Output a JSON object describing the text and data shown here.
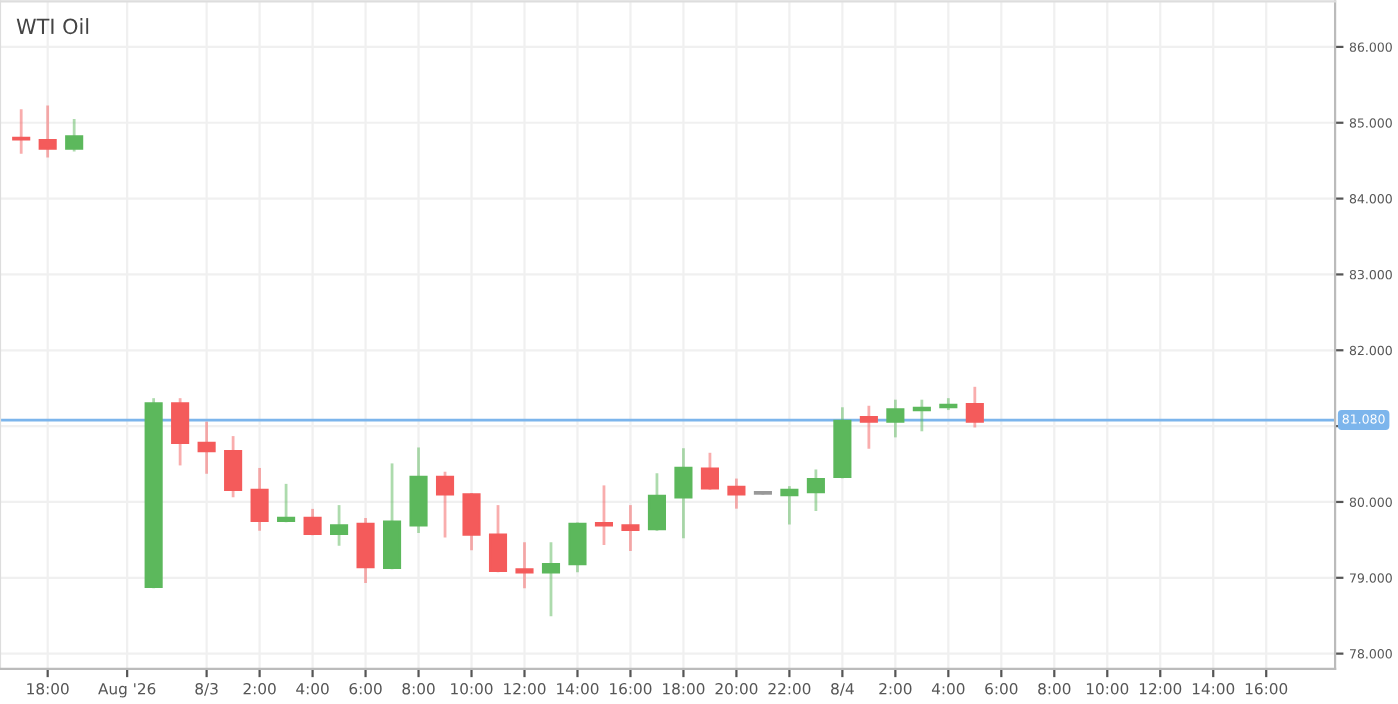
{
  "chart_data": {
    "type": "candlestick",
    "title": "WTI Oil",
    "x": [
      "2026-08-02T17:00",
      "2026-08-02T18:00",
      "2026-08-02T19:00",
      "2026-08-02T22:00",
      "2026-08-02T23:00",
      "2026-08-03T00:00",
      "2026-08-03T01:00",
      "2026-08-03T02:00",
      "2026-08-03T03:00",
      "2026-08-03T04:00",
      "2026-08-03T05:00",
      "2026-08-03T06:00",
      "2026-08-03T07:00",
      "2026-08-03T08:00",
      "2026-08-03T09:00",
      "2026-08-03T10:00",
      "2026-08-03T11:00",
      "2026-08-03T12:00",
      "2026-08-03T13:00",
      "2026-08-03T14:00",
      "2026-08-03T15:00",
      "2026-08-03T16:00",
      "2026-08-03T17:00",
      "2026-08-03T18:00",
      "2026-08-03T19:00",
      "2026-08-03T20:00",
      "2026-08-03T21:00",
      "2026-08-03T22:00",
      "2026-08-03T23:00",
      "2026-08-04T00:00",
      "2026-08-04T01:00",
      "2026-08-04T02:00",
      "2026-08-04T03:00",
      "2026-08-04T04:00",
      "2026-08-04T05:00"
    ],
    "ohlc": [
      [
        84.79,
        85.16,
        84.61,
        84.78
      ],
      [
        84.77,
        85.21,
        84.56,
        84.66
      ],
      [
        84.66,
        85.03,
        84.64,
        84.82
      ],
      [
        78.88,
        81.35,
        78.88,
        81.3
      ],
      [
        81.3,
        81.35,
        80.5,
        80.78
      ],
      [
        80.78,
        81.04,
        80.39,
        80.67
      ],
      [
        80.67,
        80.85,
        80.08,
        80.16
      ],
      [
        80.16,
        80.43,
        79.64,
        79.75
      ],
      [
        79.75,
        80.22,
        79.75,
        79.79
      ],
      [
        79.79,
        79.89,
        79.58,
        79.58
      ],
      [
        79.58,
        79.94,
        79.44,
        79.69
      ],
      [
        79.71,
        79.77,
        78.95,
        79.14
      ],
      [
        79.13,
        80.49,
        79.13,
        79.74
      ],
      [
        79.69,
        80.7,
        79.61,
        80.33
      ],
      [
        80.33,
        80.38,
        79.55,
        80.1
      ],
      [
        80.1,
        80.1,
        79.38,
        79.57
      ],
      [
        79.57,
        79.94,
        79.09,
        79.09
      ],
      [
        79.11,
        79.45,
        78.88,
        79.07
      ],
      [
        79.07,
        79.45,
        78.51,
        79.18
      ],
      [
        79.18,
        79.71,
        79.09,
        79.71
      ],
      [
        79.72,
        80.2,
        79.45,
        79.69
      ],
      [
        79.69,
        79.94,
        79.37,
        79.63
      ],
      [
        79.64,
        80.36,
        79.64,
        80.08
      ],
      [
        80.06,
        80.69,
        79.54,
        80.45
      ],
      [
        80.44,
        80.63,
        80.18,
        80.18
      ],
      [
        80.2,
        80.29,
        79.93,
        80.1
      ],
      [
        80.11,
        80.11,
        80.11,
        80.11
      ],
      [
        80.09,
        80.19,
        79.72,
        80.16
      ],
      [
        80.13,
        80.41,
        79.9,
        80.3
      ],
      [
        80.33,
        81.23,
        80.33,
        81.07
      ],
      [
        81.12,
        81.25,
        80.72,
        81.06
      ],
      [
        81.06,
        81.33,
        80.87,
        81.22
      ],
      [
        81.21,
        81.33,
        80.95,
        81.24
      ],
      [
        81.25,
        81.35,
        81.23,
        81.28
      ],
      [
        81.29,
        81.5,
        81.0,
        81.06
      ]
    ],
    "colors": [
      "#f45b5b",
      "#f45b5b",
      "#5cb85c",
      "#5cb85c",
      "#f45b5b",
      "#f45b5b",
      "#f45b5b",
      "#f45b5b",
      "#5cb85c",
      "#f45b5b",
      "#5cb85c",
      "#f45b5b",
      "#5cb85c",
      "#5cb85c",
      "#f45b5b",
      "#f45b5b",
      "#f45b5b",
      "#f45b5b",
      "#5cb85c",
      "#5cb85c",
      "#f45b5b",
      "#f45b5b",
      "#5cb85c",
      "#5cb85c",
      "#f45b5b",
      "#f45b5b",
      "#999999",
      "#5cb85c",
      "#5cb85c",
      "#5cb85c",
      "#f45b5b",
      "#5cb85c",
      "#5cb85c",
      "#5cb85c",
      "#f45b5b"
    ],
    "xlim": [
      "2026-08-02T16:12",
      "2026-08-04T18:36"
    ],
    "xticks": [
      {
        "value": "2026-08-02T18:00",
        "label": "18:00"
      },
      {
        "value": "2026-08-02T21:00",
        "label": "Aug '26"
      },
      {
        "value": "2026-08-03",
        "label": "8/3"
      },
      {
        "value": "2026-08-03T02:00",
        "label": "2:00"
      },
      {
        "value": "2026-08-03T04:00",
        "label": "4:00"
      },
      {
        "value": "2026-08-03T06:00",
        "label": "6:00"
      },
      {
        "value": "2026-08-03T08:00",
        "label": "8:00"
      },
      {
        "value": "2026-08-03T10:00",
        "label": "10:00"
      },
      {
        "value": "2026-08-03T12:00",
        "label": "12:00"
      },
      {
        "value": "2026-08-03T14:00",
        "label": "14:00"
      },
      {
        "value": "2026-08-03T16:00",
        "label": "16:00"
      },
      {
        "value": "2026-08-03T18:00",
        "label": "18:00"
      },
      {
        "value": "2026-08-03T20:00",
        "label": "20:00"
      },
      {
        "value": "2026-08-03T22:00",
        "label": "22:00"
      },
      {
        "value": "2026-08-04",
        "label": "8/4"
      },
      {
        "value": "2026-08-04T02:00",
        "label": "2:00"
      },
      {
        "value": "2026-08-04T04:00",
        "label": "4:00"
      },
      {
        "value": "2026-08-04T06:00",
        "label": "6:00"
      },
      {
        "value": "2026-08-04T08:00",
        "label": "8:00"
      },
      {
        "value": "2026-08-04T10:00",
        "label": "10:00"
      },
      {
        "value": "2026-08-04T12:00",
        "label": "12:00"
      },
      {
        "value": "2026-08-04T14:00",
        "label": "14:00"
      },
      {
        "value": "2026-08-04T16:00",
        "label": "16:00"
      }
    ],
    "ylim": [
      77.8,
      86.6
    ],
    "yticks": [
      {
        "value": 78,
        "label": "78.000"
      },
      {
        "value": 79,
        "label": "79.000"
      },
      {
        "value": 80,
        "label": "80.000"
      },
      {
        "value": 81,
        "label": null
      },
      {
        "value": 82,
        "label": "82.000"
      },
      {
        "value": 83,
        "label": "83.000"
      },
      {
        "value": 84,
        "label": "84.000"
      },
      {
        "value": 85,
        "label": "85.000"
      },
      {
        "value": 86,
        "label": "86.000"
      }
    ],
    "ref_lines": [
      {
        "axis": "y",
        "value": 81.08,
        "label": "81.080",
        "color": "#7cb5ec"
      }
    ],
    "grid": true
  }
}
